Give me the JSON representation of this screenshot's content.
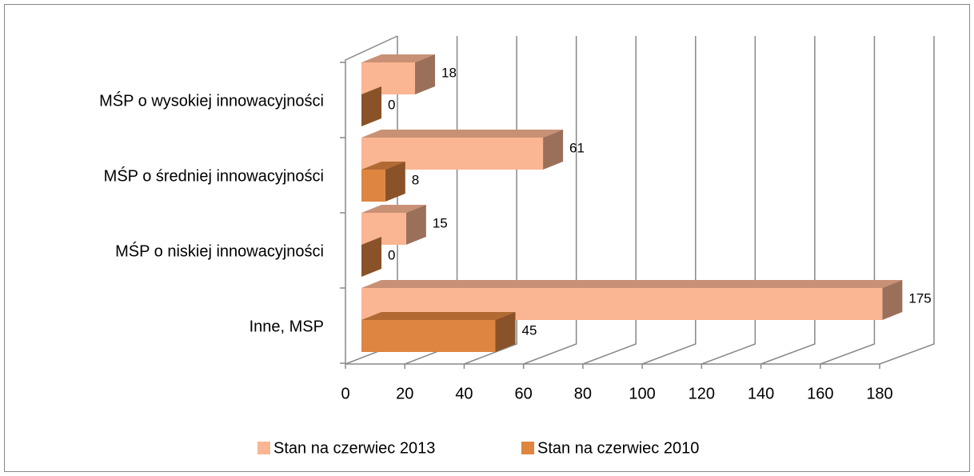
{
  "chart_data": {
    "type": "bar3d-horizontal",
    "categories": [
      "MŚP o wysokiej innowacyjności",
      "MŚP o średniej innowacyjności",
      "MŚP o niskiej innowacyjności",
      "Inne, MSP"
    ],
    "series": [
      {
        "name": "Stan na czerwiec 2013",
        "color": "#fab592",
        "values": [
          18,
          61,
          15,
          175
        ]
      },
      {
        "name": "Stan na czerwiec 2010",
        "color": "#de8540",
        "values": [
          0,
          8,
          0,
          45
        ]
      }
    ],
    "xlim": [
      0,
      180
    ],
    "xticks": [
      0,
      20,
      40,
      60,
      80,
      100,
      120,
      140,
      160,
      180
    ],
    "grid": true,
    "legend": "bottom"
  }
}
